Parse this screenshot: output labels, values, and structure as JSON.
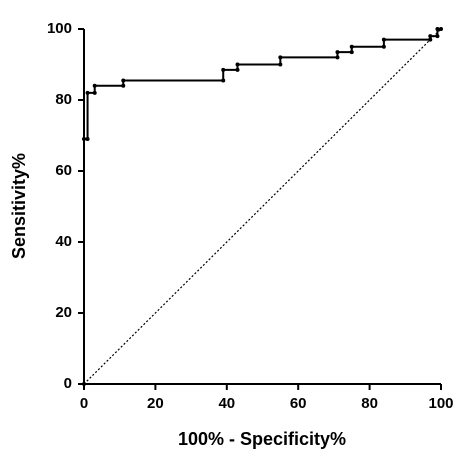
{
  "chart_data": {
    "type": "line",
    "xlabel": "100% - Specificity%",
    "ylabel": "Sensitivity%",
    "xlim": [
      0,
      100
    ],
    "ylim": [
      0,
      100
    ],
    "xticks": [
      0,
      20,
      40,
      60,
      80,
      100
    ],
    "yticks": [
      0,
      20,
      40,
      60,
      80,
      100
    ],
    "grid": false,
    "series": [
      {
        "color": "#000000",
        "linestyle": "solid",
        "markers": true,
        "x": [
          0,
          0,
          1,
          1,
          3,
          3,
          11,
          11,
          39,
          39,
          43,
          43,
          55,
          55,
          71,
          71,
          75,
          75,
          84,
          84,
          97,
          97,
          99,
          99,
          100
        ],
        "values": [
          0,
          69,
          69,
          82,
          82,
          84,
          84,
          85.5,
          85.5,
          88.5,
          88.5,
          90,
          90,
          92,
          92,
          93.5,
          93.5,
          95,
          95,
          97,
          97,
          98,
          98,
          100,
          100
        ]
      },
      {
        "color": "#000000",
        "linestyle": "dotted",
        "markers": false,
        "x": [
          0,
          100
        ],
        "values": [
          0,
          100
        ]
      }
    ]
  }
}
